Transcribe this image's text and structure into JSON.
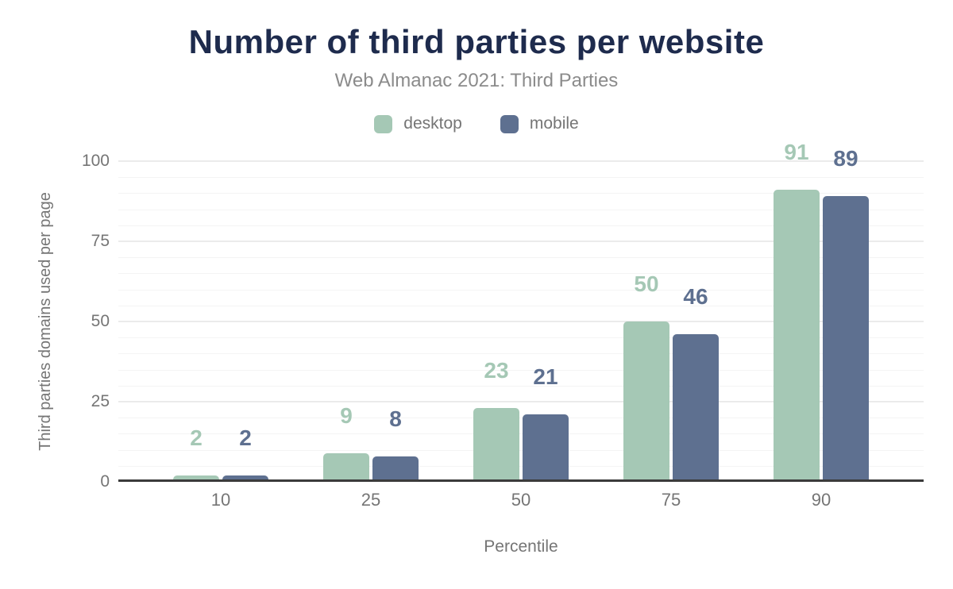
{
  "header": {
    "title": "Number of third parties per website",
    "subtitle": "Web Almanac 2021: Third Parties"
  },
  "colors": {
    "title": "#1e2b4d",
    "subtitle_text": "#8b8b8b",
    "axis_text": "#757575",
    "axis_line": "#3b3b3b",
    "grid_minor": "#f4f4f4",
    "grid_major": "#ebebeb",
    "background": "#ffffff",
    "desktop": "#a5c8b5",
    "mobile": "#5e7090"
  },
  "chart_data": {
    "type": "bar",
    "title": "Number of third parties per website",
    "subtitle": "Web Almanac 2021: Third Parties",
    "categories": [
      10,
      25,
      50,
      75,
      90
    ],
    "series": [
      {
        "name": "desktop",
        "color": "#a5c8b5",
        "values": [
          2,
          9,
          23,
          50,
          91
        ]
      },
      {
        "name": "mobile",
        "color": "#5e7090",
        "values": [
          2,
          8,
          21,
          46,
          89
        ]
      }
    ],
    "xlabel": "Percentile",
    "ylabel": "Third parties domains used per page",
    "yticks": [
      0,
      25,
      50,
      75,
      100
    ],
    "ylim": [
      0,
      105
    ],
    "grid": "horizontal minor every 5, major every 25",
    "legend_position": "top",
    "data_labels": "above bars, colored per series, bold"
  }
}
